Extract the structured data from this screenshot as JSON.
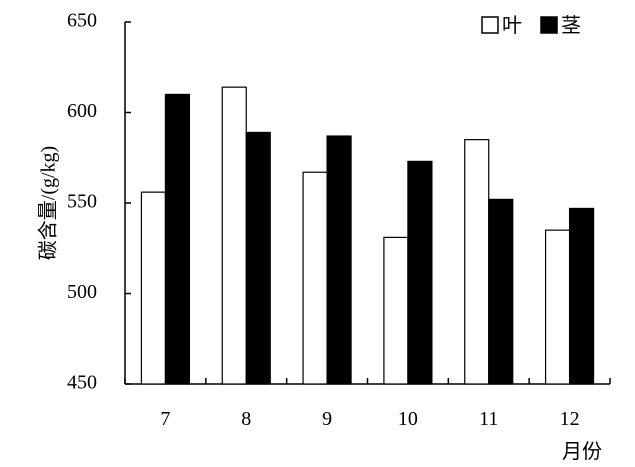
{
  "chart_data": {
    "type": "bar",
    "categories": [
      "7",
      "8",
      "9",
      "10",
      "11",
      "12"
    ],
    "series": [
      {
        "name": "叶",
        "values": [
          556,
          614,
          567,
          531,
          585,
          535
        ],
        "color": "#ffffff"
      },
      {
        "name": "茎",
        "values": [
          610,
          589,
          587,
          573,
          552,
          547
        ],
        "color": "#000000"
      }
    ],
    "xlabel": "月份",
    "ylabel": "碳含量/(g/kg)",
    "ylim": [
      450,
      650
    ],
    "yticks": [
      "450",
      "500",
      "550",
      "600",
      "650"
    ],
    "grid": false,
    "legend_position": "top-right"
  }
}
